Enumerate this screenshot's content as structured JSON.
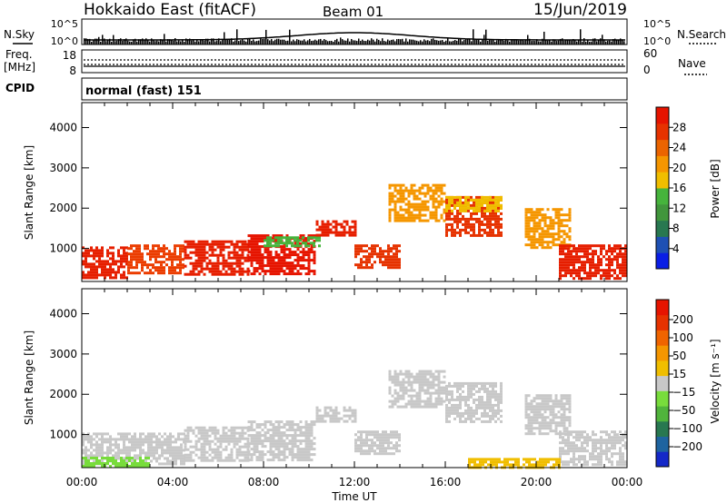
{
  "header": {
    "title": "Hokkaido East (fitACF)",
    "beam": "Beam 01",
    "date": "15/Jun/2019"
  },
  "side_labels": {
    "nsky": "N.Sky",
    "nsearch": "N.Search",
    "freq": "Freq.",
    "freq_unit": "[MHz]",
    "nave": "Nave",
    "cpid": "CPID"
  },
  "top_panel": {
    "left_ticks": [
      "10^5",
      "10^0"
    ],
    "right_ticks": [
      "10^5",
      "10^0"
    ]
  },
  "freq_panel": {
    "left_ticks": [
      "18",
      "8"
    ],
    "right_ticks": [
      "60",
      "0"
    ]
  },
  "cpid_panel": {
    "mode_text": "normal (fast) 151"
  },
  "chart_data": [
    {
      "type": "heatmap",
      "name": "power",
      "ylabel": "Slant Range [km]",
      "ylim": [
        180,
        4620
      ],
      "yticks": [
        "1000",
        "2000",
        "3000",
        "4000"
      ],
      "xlim_hours": [
        0,
        24
      ],
      "colorbar": {
        "label": "Power [dB]",
        "ticks": [
          "4",
          "8",
          "12",
          "16",
          "20",
          "24",
          "28"
        ],
        "colors": [
          "#0a1ee6",
          "#1e50b4",
          "#287850",
          "#41963c",
          "#46b43c",
          "#f0be00",
          "#f59600",
          "#eb6400",
          "#e63200",
          "#e61400"
        ]
      },
      "regions": [
        {
          "t0": 0.0,
          "t1": 2.0,
          "r0": 300,
          "r1": 1050,
          "color": "#e61e00"
        },
        {
          "t0": 2.0,
          "t1": 4.5,
          "r0": 400,
          "r1": 1100,
          "color": "#eb3c00"
        },
        {
          "t0": 4.5,
          "t1": 7.3,
          "r0": 350,
          "r1": 1200,
          "color": "#e61e00"
        },
        {
          "t0": 7.3,
          "t1": 10.3,
          "r0": 400,
          "r1": 1350,
          "color": "#e61400"
        },
        {
          "t0": 8.0,
          "t1": 10.5,
          "r0": 1050,
          "r1": 1300,
          "color": "#46b43c"
        },
        {
          "t0": 10.3,
          "t1": 12.0,
          "r0": 1350,
          "r1": 1700,
          "color": "#e61e00"
        },
        {
          "t0": 12.0,
          "t1": 14.0,
          "r0": 500,
          "r1": 1100,
          "color": "#e63200"
        },
        {
          "t0": 13.5,
          "t1": 16.0,
          "r0": 1700,
          "r1": 2600,
          "color": "#f59600"
        },
        {
          "t0": 16.0,
          "t1": 18.5,
          "r0": 1300,
          "r1": 2300,
          "color": "#e63200"
        },
        {
          "t0": 16.0,
          "t1": 18.5,
          "r0": 1900,
          "r1": 2300,
          "color": "#f0be00"
        },
        {
          "t0": 19.5,
          "t1": 21.5,
          "r0": 1000,
          "r1": 2000,
          "color": "#f59600"
        },
        {
          "t0": 21.0,
          "t1": 24.0,
          "r0": 250,
          "r1": 1100,
          "color": "#e61e00"
        }
      ]
    },
    {
      "type": "heatmap",
      "name": "velocity",
      "ylabel": "Slant Range [km]",
      "ylim": [
        180,
        4620
      ],
      "yticks": [
        "1000",
        "2000",
        "3000",
        "4000"
      ],
      "xlim_hours": [
        0,
        24
      ],
      "xticks": [
        "00:00",
        "04:00",
        "08:00",
        "12:00",
        "16:00",
        "20:00",
        "00:00"
      ],
      "xlabel": "Time UT",
      "colorbar": {
        "label": "Velocity [m s⁻¹]",
        "ticks": [
          "200",
          "100",
          "50",
          "15",
          "−15",
          "−50",
          "−100",
          "−200"
        ],
        "colors": [
          "#1428c8",
          "#1e64a0",
          "#287850",
          "#50b43c",
          "#78dc3c",
          "#c8c8c8",
          "#f0be00",
          "#f59600",
          "#f06400",
          "#e63200",
          "#e61400"
        ]
      },
      "regions": [
        {
          "t0": 0.0,
          "t1": 4.5,
          "r0": 300,
          "r1": 1050,
          "color": "#c8c8c8"
        },
        {
          "t0": 4.5,
          "t1": 7.3,
          "r0": 350,
          "r1": 1200,
          "color": "#c8c8c8"
        },
        {
          "t0": 7.3,
          "t1": 10.3,
          "r0": 400,
          "r1": 1350,
          "color": "#c8c8c8"
        },
        {
          "t0": 10.3,
          "t1": 12.0,
          "r0": 1350,
          "r1": 1700,
          "color": "#c8c8c8"
        },
        {
          "t0": 12.0,
          "t1": 14.0,
          "r0": 500,
          "r1": 1100,
          "color": "#c8c8c8"
        },
        {
          "t0": 13.5,
          "t1": 16.0,
          "r0": 1700,
          "r1": 2600,
          "color": "#c8c8c8"
        },
        {
          "t0": 16.0,
          "t1": 18.5,
          "r0": 1300,
          "r1": 2300,
          "color": "#c8c8c8"
        },
        {
          "t0": 19.5,
          "t1": 21.5,
          "r0": 1000,
          "r1": 2000,
          "color": "#c8c8c8"
        },
        {
          "t0": 21.0,
          "t1": 24.0,
          "r0": 250,
          "r1": 1100,
          "color": "#c8c8c8"
        },
        {
          "t0": 0.0,
          "t1": 3.0,
          "r0": 200,
          "r1": 450,
          "color": "#78dc3c"
        },
        {
          "t0": 17.0,
          "t1": 21.0,
          "r0": 200,
          "r1": 420,
          "color": "#f0be00"
        }
      ]
    }
  ]
}
